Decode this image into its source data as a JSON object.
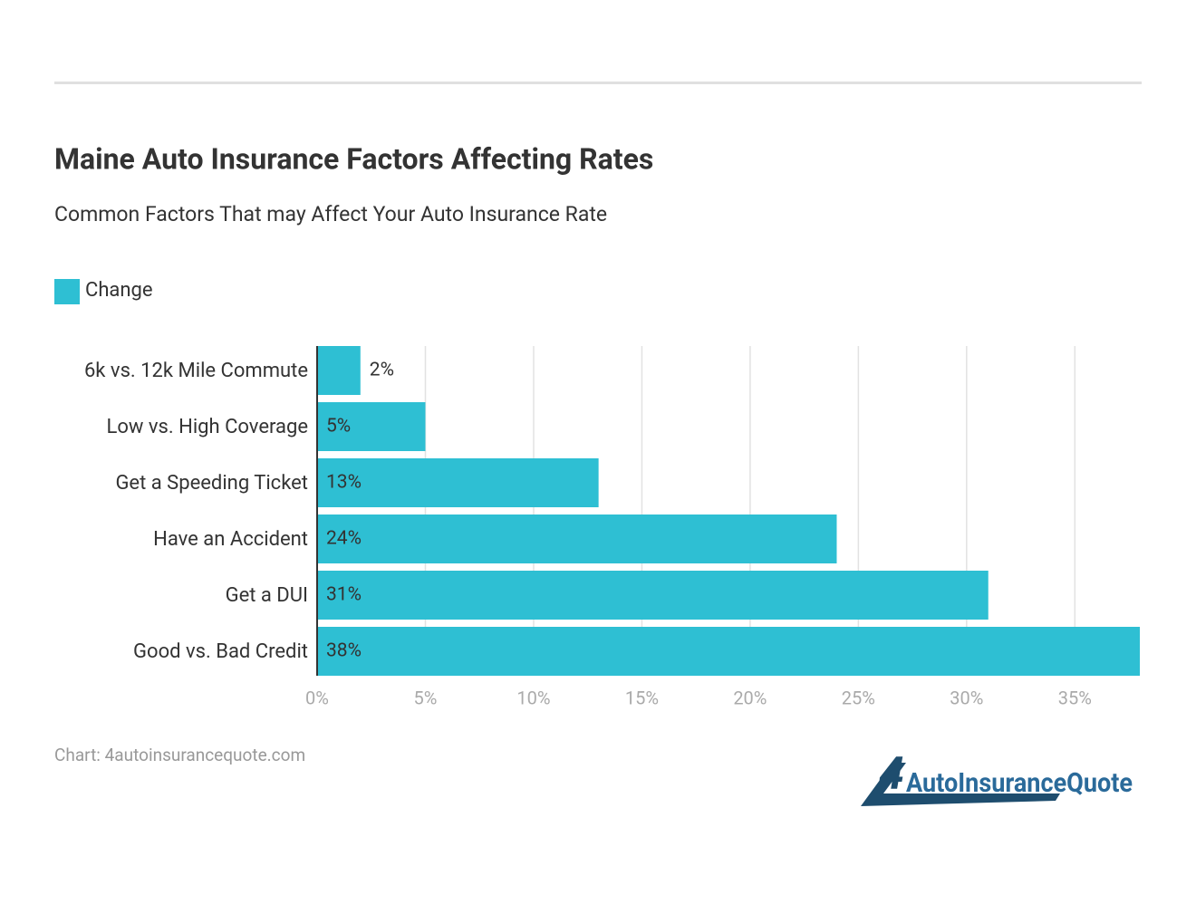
{
  "chart_data": {
    "type": "hbar",
    "title": "Maine Auto Insurance Factors Affecting Rates",
    "subtitle": "Common Factors That may Affect Your Auto Insurance Rate",
    "categories": [
      "6k vs. 12k Mile Commute",
      "Low vs. High Coverage",
      "Get a Speeding Ticket",
      "Have an Accident",
      "Get a DUI",
      "Good vs. Bad Credit"
    ],
    "series": [
      {
        "name": "Change",
        "color": "#2ebfd3",
        "values": [
          2,
          5,
          13,
          24,
          31,
          38
        ],
        "value_labels": [
          "2%",
          "5%",
          "13%",
          "24%",
          "31%",
          "38%"
        ]
      }
    ],
    "xlim": [
      0,
      38
    ],
    "xticks": [
      {
        "value": 0,
        "label": "0%"
      },
      {
        "value": 5,
        "label": "5%"
      },
      {
        "value": 10,
        "label": "10%"
      },
      {
        "value": 15,
        "label": "15%"
      },
      {
        "value": 20,
        "label": "20%"
      },
      {
        "value": 25,
        "label": "25%"
      },
      {
        "value": 30,
        "label": "30%"
      },
      {
        "value": 35,
        "label": "35%"
      }
    ],
    "grid": true,
    "legend": "top-left",
    "source": "Chart: 4autoinsurancequote.com",
    "logo": {
      "number": "4",
      "text": "AutoInsuranceQuote"
    }
  }
}
